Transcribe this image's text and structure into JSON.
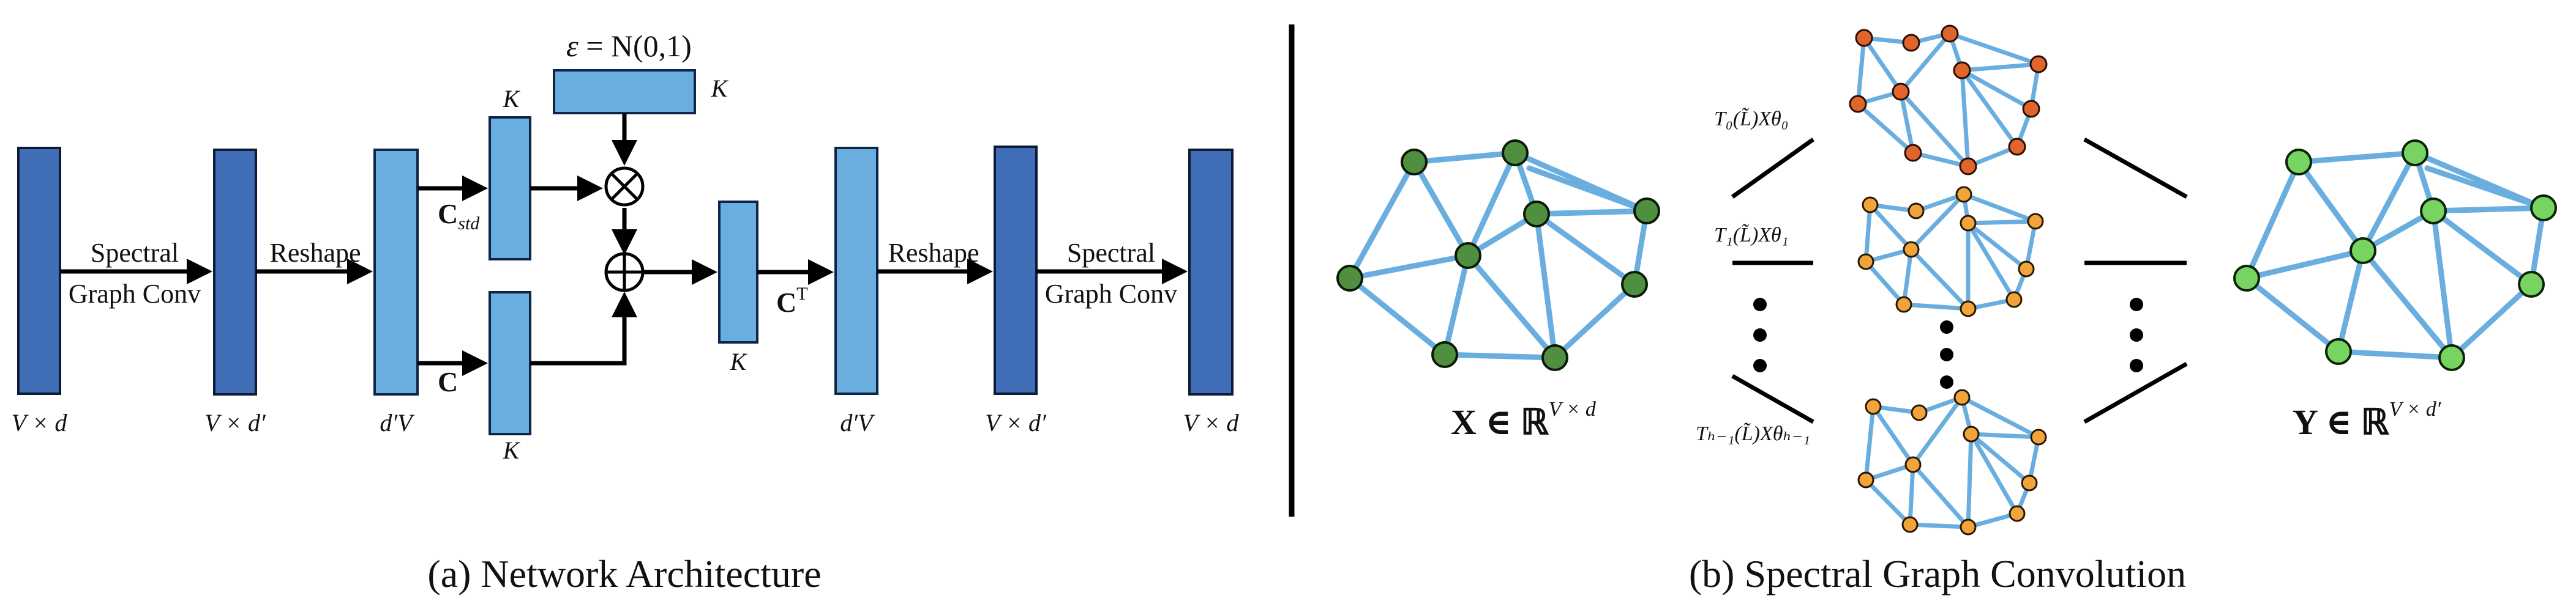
{
  "architecture": {
    "caption": "(a) Network Architecture",
    "input_dim": "V × d",
    "conv1_dim": "V × d′",
    "reshape_dim": "d′V",
    "k_label_top": "K",
    "k_label_noise": "K",
    "k_label_bottom": "K",
    "k_label_ct": "K",
    "ct_dim": "d′V",
    "conv2_dim": "V × d′",
    "output_dim": "V × d",
    "spectral_label_1a": "Spectral",
    "spectral_label_1b": "Graph Conv",
    "reshape_label_1": "Reshape",
    "reshape_label_2": "Reshape",
    "spectral_label_2a": "Spectral",
    "spectral_label_2b": "Graph Conv",
    "c_std_main": "C",
    "c_std_sub": "std",
    "c_main": "C",
    "ct_main": "C",
    "ct_sup": "T",
    "noise_eps": "ε",
    "noise_rest": " = N(0,1)",
    "multiply_symbol": "⊗",
    "add_symbol": "⊕"
  },
  "spectral": {
    "caption": "(b) Spectral Graph Convolution",
    "input_main": "X ∈ ℝ",
    "input_sup": "V × d",
    "output_main": "Y ∈ ℝ",
    "output_sup": "V × d′",
    "term_0": "T₀(L̃)Xθ₀",
    "term_1": "T₁(L̃)Xθ₁",
    "term_last": "Tₕ₋₁(L̃)Xθₕ₋₁",
    "colors": {
      "edge": "#6aaee0",
      "input_node": "#4f8f3f",
      "output_node": "#77d462",
      "t0_node": "#e0652d",
      "tk_node": "#f0a43a",
      "block_dark": "#3f6eb6",
      "block_light": "#69aede"
    }
  }
}
